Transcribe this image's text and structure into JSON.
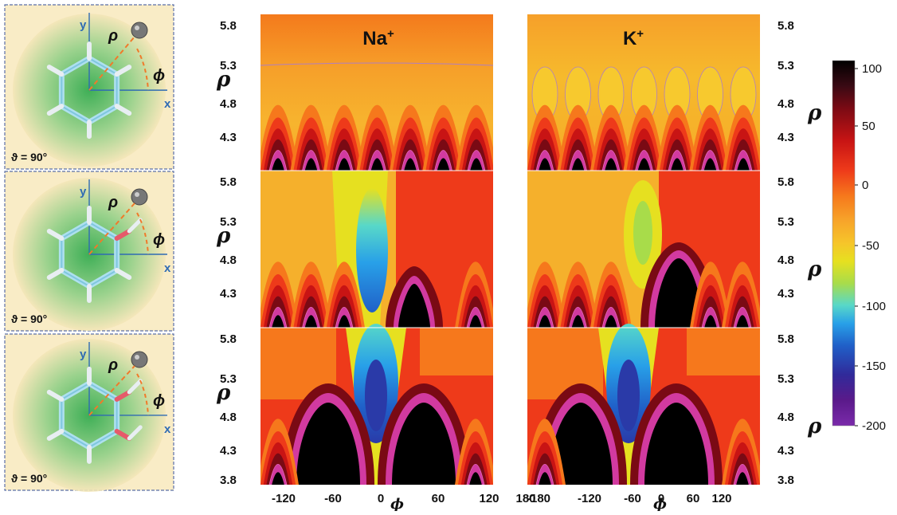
{
  "chart_data": {
    "type": "heatmap",
    "columns": [
      {
        "title": "Na",
        "title_sup": "+",
        "x_ticks": [
          "-120",
          "-60",
          "0",
          "60",
          "120",
          "180"
        ]
      },
      {
        "title": "K",
        "title_sup": "+",
        "x_ticks": [
          "-180",
          "-120",
          "-60",
          "0",
          "60",
          "120"
        ]
      }
    ],
    "rows": [
      "benzene",
      "phenol",
      "catechol"
    ],
    "xlabel": "ϕ",
    "ylabel": "ρ",
    "left_rho_ticks": [
      "5.8",
      "5.3",
      "4.8",
      "4.3"
    ],
    "left_rho_ticks_bottom": [
      "5.8",
      "5.3",
      "4.8",
      "4.3",
      "3.8"
    ],
    "right_rho_ticks": [
      "5.8",
      "5.3",
      "4.8",
      "4.3"
    ],
    "right_rho_ticks_bottom": [
      "5.8",
      "5.3",
      "4.8",
      "4.3",
      "3.8"
    ],
    "colorbar": {
      "ticks": [
        "100",
        "50",
        "0",
        "-50",
        "-100",
        "-150",
        "-200"
      ],
      "range": [
        -200,
        100
      ],
      "colors": [
        "#000000",
        "#3a0a14",
        "#7a0a14",
        "#c81414",
        "#ee3a1a",
        "#f6781c",
        "#f7a52a",
        "#f6c52a",
        "#e6e020",
        "#a8dc4a",
        "#58d8c8",
        "#28a0e8",
        "#2060c8",
        "#302a9a",
        "#5a1a8a",
        "#7a2aaa"
      ]
    }
  },
  "insets": [
    {
      "x_axis": "x",
      "y_axis": "y",
      "rho": "ρ",
      "phi": "ϕ",
      "theta": "ϑ = 90°"
    },
    {
      "x_axis": "x",
      "y_axis": "y",
      "rho": "ρ",
      "phi": "ϕ",
      "theta": "ϑ = 90°"
    },
    {
      "x_axis": "x",
      "y_axis": "y",
      "rho": "ρ",
      "phi": "ϕ",
      "theta": "ϑ = 90°"
    }
  ]
}
